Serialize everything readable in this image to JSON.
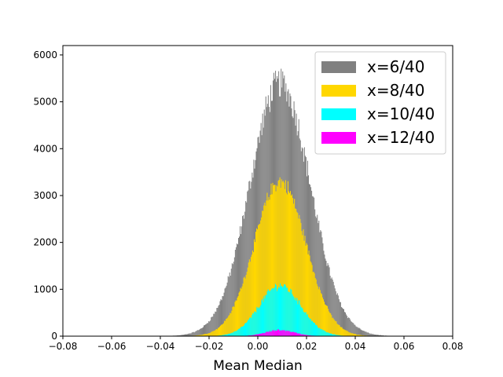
{
  "chart_data": {
    "type": "histogram",
    "title": "",
    "xlabel": "Mean Median",
    "ylabel": "",
    "xlim": [
      -0.08,
      0.08
    ],
    "ylim": [
      0,
      6200
    ],
    "xticks": [
      -0.08,
      -0.06,
      -0.04,
      -0.02,
      0.0,
      0.02,
      0.04,
      0.06,
      0.08
    ],
    "xtick_labels": [
      "−0.08",
      "−0.06",
      "−0.04",
      "−0.02",
      "0.00",
      "0.02",
      "0.04",
      "0.06",
      "0.08"
    ],
    "yticks": [
      0,
      1000,
      2000,
      3000,
      4000,
      5000,
      6000
    ],
    "ytick_labels": [
      "0",
      "1000",
      "2000",
      "3000",
      "4000",
      "5000",
      "6000"
    ],
    "grid": false,
    "legend_position": "top-right",
    "series": [
      {
        "name": "x=6/40",
        "color": "#808080",
        "peak_x": 0.009,
        "peak_y": 5400,
        "sigma": 0.0123,
        "noise": 0.06
      },
      {
        "name": "x=8/40",
        "color": "#ffd700",
        "peak_x": 0.009,
        "peak_y": 3300,
        "sigma": 0.0105,
        "noise": 0.05
      },
      {
        "name": "x=10/40",
        "color": "#00ffff",
        "peak_x": 0.009,
        "peak_y": 1080,
        "sigma": 0.0085,
        "noise": 0.08
      },
      {
        "name": "x=12/40",
        "color": "#ff00ff",
        "peak_x": 0.009,
        "peak_y": 130,
        "sigma": 0.006,
        "noise": 0.12
      }
    ]
  }
}
